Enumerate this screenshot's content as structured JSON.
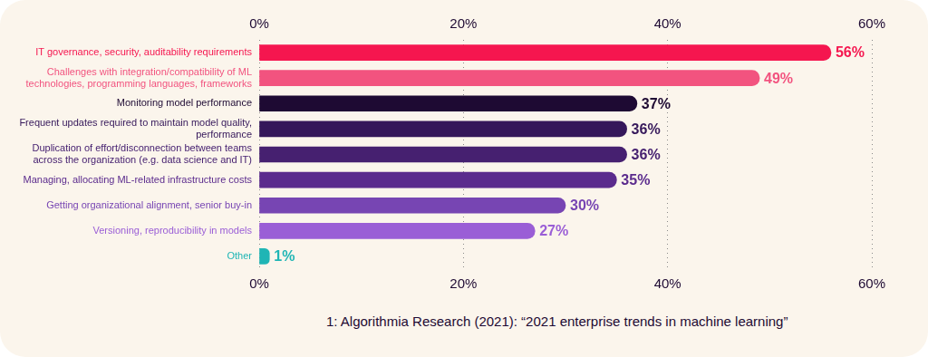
{
  "chart_data": {
    "type": "bar",
    "orientation": "horizontal",
    "categories": [
      "IT governance, security, auditability requirements",
      "Challenges with integration/compatibility of ML technologies, programming languages, frameworks",
      "Monitoring model performance",
      "Frequent updates required to maintain model quality, performance",
      "Duplication of effort/disconnection between teams across the organization (e.g. data science and IT)",
      "Managing, allocating ML-related infrastructure costs",
      "Getting organizational alignment, senior buy-in",
      "Versioning, reproducibility in models",
      "Other"
    ],
    "values": [
      56,
      49,
      37,
      36,
      36,
      35,
      30,
      27,
      1
    ],
    "value_labels": [
      "56%",
      "49%",
      "37%",
      "36%",
      "36%",
      "35%",
      "30%",
      "27%",
      "1%"
    ],
    "colors": [
      "#f5164f",
      "#f2537f",
      "#1e0a33",
      "#35175a",
      "#462070",
      "#5b2b8d",
      "#7745b3",
      "#9a5ed6",
      "#1fb5b5"
    ],
    "xlim": [
      0,
      60
    ],
    "xticks": [
      {
        "value": 0,
        "label": "0%"
      },
      {
        "value": 20,
        "label": "20%"
      },
      {
        "value": 40,
        "label": "40%"
      },
      {
        "value": 60,
        "label": "60%"
      }
    ],
    "grid": true,
    "data_labels": true,
    "annotation": "1: Algorithmia Research (2021): “2021 enterprise trends in machine learning”"
  }
}
